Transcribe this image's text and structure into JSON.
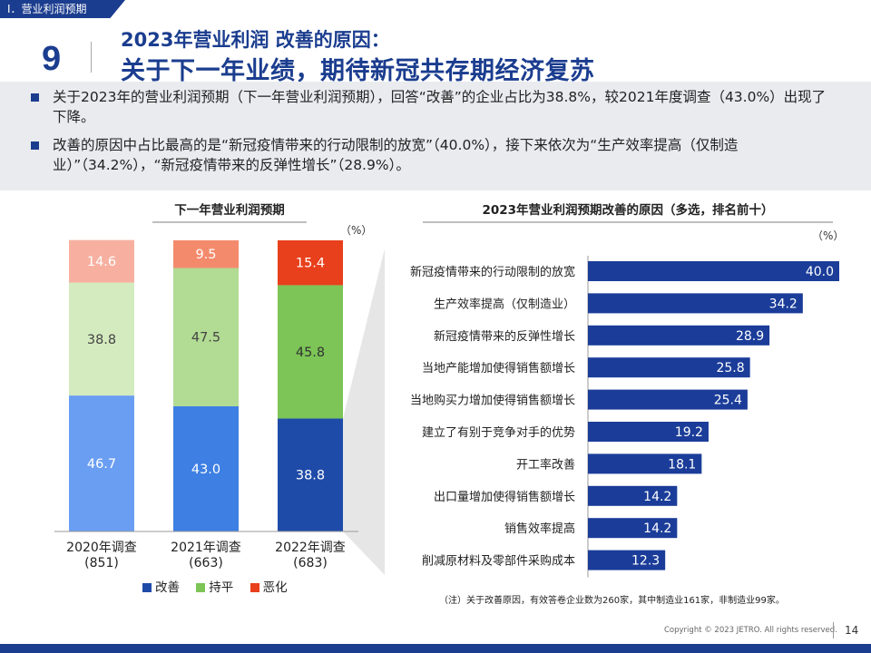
{
  "header": {
    "section": "Ⅰ．营业利润预期",
    "page_number": "9",
    "subtitle": "2023年营业利润 改善的原因：",
    "title": "关于下一年业绩，期待新冠共存期经济复苏"
  },
  "summary": [
    "关于2023年的营业利润预期（下一年营业利润预期），回答“改善”的企业占比为38.8%，较2021年度调查（43.0%）出现了下降。",
    "改善的原因中占比最高的是“新冠疫情带来的行动限制的放宽”（40.0%），接下来依次为“生产效率提高（仅制造业）”（34.2%），“新冠疫情带来的反弹性增长”（28.9%）。"
  ],
  "chart_data": [
    {
      "type": "bar",
      "stacked": true,
      "title": "下一年营业利润预期",
      "unit": "（%）",
      "categories": [
        {
          "name": "2020年调查",
          "n": "(851)"
        },
        {
          "name": "2021年调查",
          "n": "(663)"
        },
        {
          "name": "2022年调查",
          "n": "(683)"
        }
      ],
      "series": [
        {
          "name": "改善",
          "values": [
            46.7,
            43.0,
            38.8
          ],
          "colors": [
            "#6a9ef2",
            "#3d7fe3",
            "#1f4ba8"
          ],
          "label_colors": [
            "#ffffff",
            "#ffffff",
            "#ffffff"
          ]
        },
        {
          "name": "持平",
          "values": [
            38.8,
            47.5,
            45.8
          ],
          "colors": [
            "#d4ebbf",
            "#b2db93",
            "#7cc556"
          ],
          "label_colors": [
            "#444444",
            "#444444",
            "#333333"
          ]
        },
        {
          "name": "恶化",
          "values": [
            14.6,
            9.5,
            15.4
          ],
          "colors": [
            "#f7b0a0",
            "#f48a6c",
            "#e8401c"
          ],
          "label_colors": [
            "#ffffff",
            "#ffffff",
            "#ffffff"
          ]
        }
      ],
      "legend": [
        {
          "name": "改善",
          "color": "#1f4ba8"
        },
        {
          "name": "持平",
          "color": "#7cc556"
        },
        {
          "name": "恶化",
          "color": "#e8401c"
        }
      ],
      "ylim": [
        0,
        100
      ]
    },
    {
      "type": "bar",
      "orientation": "horizontal",
      "title": "2023年营业利润预期改善的原因（多选，排名前十）",
      "unit": "（%）",
      "categories": [
        "新冠疫情带来的行动限制的放宽",
        "生产效率提高（仅制造业）",
        "新冠疫情带来的反弹性增长",
        "当地产能增加使得销售额增长",
        "当地购买力增加使得销售额增长",
        "建立了有别于竞争对手的优势",
        "开工率改善",
        "出口量增加使得销售额增长",
        "销售效率提高",
        "削减原材料及零部件采购成本"
      ],
      "values": [
        40.0,
        34.2,
        28.9,
        25.8,
        25.4,
        19.2,
        18.1,
        14.2,
        14.2,
        12.3
      ],
      "color": "#1b3d99",
      "xlim": [
        0,
        40
      ]
    }
  ],
  "note": "（注）关于改善原因，有效答卷企业数为260家，其中制造业161家，非制造业99家。",
  "footer": {
    "copyright": "Copyright © 2023 JETRO. All rights reserved.",
    "page": "14"
  },
  "colors": {
    "brand": "#1b3d8f",
    "summary_bg": "#e9ebef",
    "connector": "#e6e6e6"
  }
}
